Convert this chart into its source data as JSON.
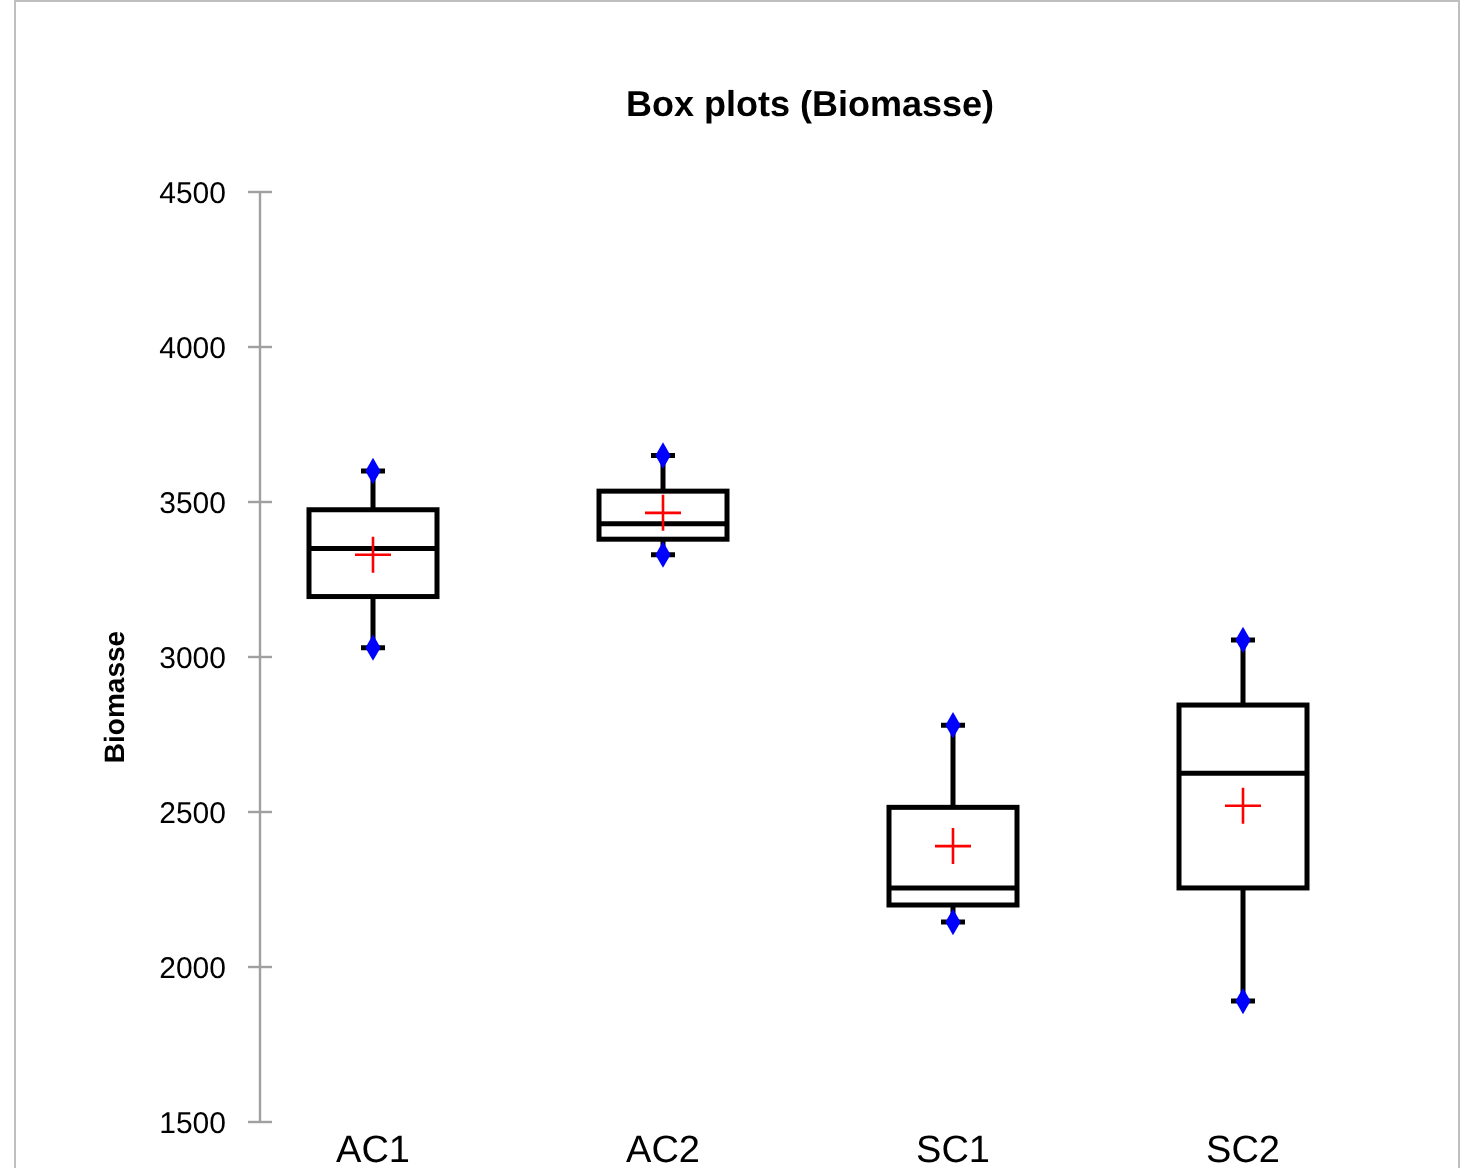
{
  "chart_data": {
    "type": "box",
    "title": "Box plots (Biomasse)",
    "ylabel": "Biomasse",
    "categories": [
      "AC1",
      "AC2",
      "SC1",
      "SC2"
    ],
    "boxes": [
      {
        "low": 3030,
        "q1": 3195,
        "median": 3350,
        "q3": 3475,
        "high": 3600,
        "mean": 3330
      },
      {
        "low": 3330,
        "q1": 3380,
        "median": 3430,
        "q3": 3535,
        "high": 3650,
        "mean": 3465
      },
      {
        "low": 2145,
        "q1": 2200,
        "median": 2255,
        "q3": 2515,
        "high": 2780,
        "mean": 2390
      },
      {
        "low": 1890,
        "q1": 2255,
        "median": 2625,
        "q3": 2845,
        "high": 3055,
        "mean": 2520
      }
    ],
    "series": [
      {
        "type": "scatter",
        "color": "#0000ff",
        "marker": "diamond",
        "x": [
          "AC1",
          "AC1",
          "AC2",
          "AC2",
          "SC1",
          "SC1",
          "SC2",
          "SC2"
        ],
        "values": [
          3600,
          3030,
          3650,
          3330,
          2780,
          2145,
          3055,
          1890
        ]
      }
    ],
    "ylim": [
      1500,
      4500
    ],
    "yticks": [
      1500,
      2000,
      2500,
      3000,
      3500,
      4000,
      4500
    ],
    "grid": false
  }
}
